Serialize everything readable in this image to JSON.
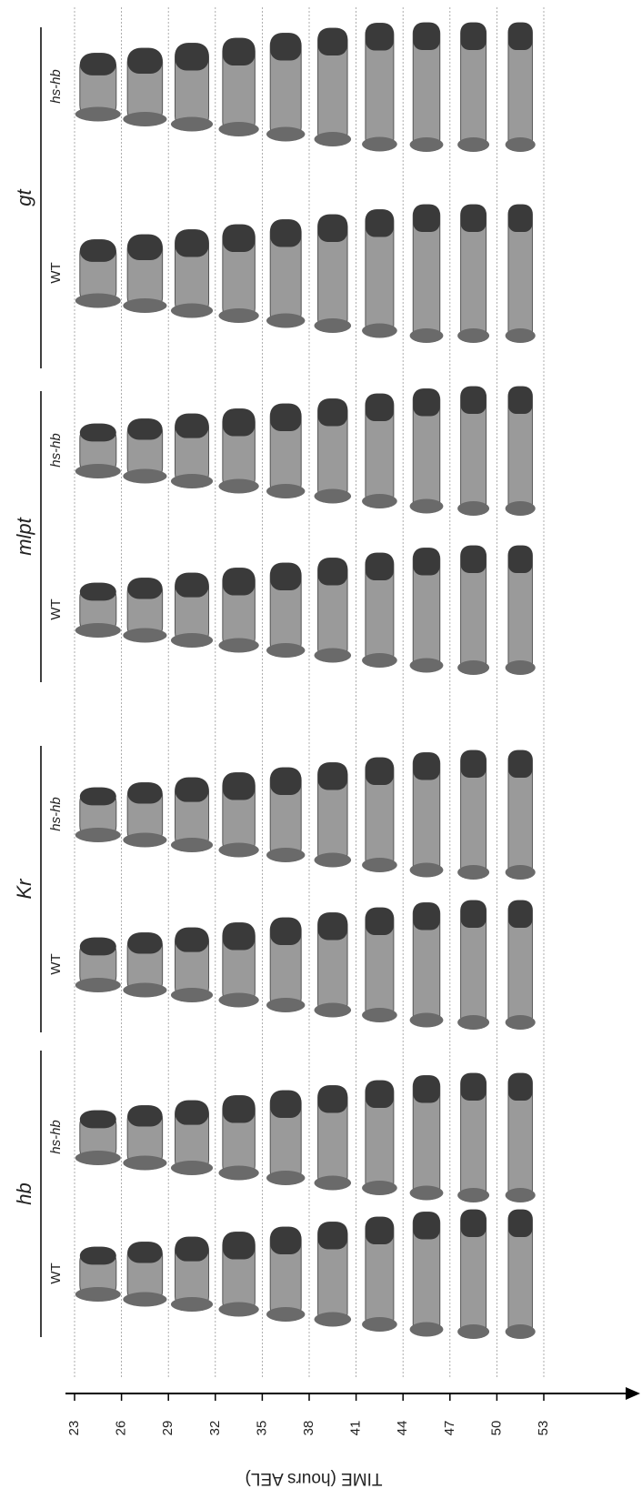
{
  "genes": [
    {
      "name": "hb",
      "conditions": [
        "WT",
        "hs-hb"
      ]
    },
    {
      "name": "Kr",
      "conditions": [
        "WT",
        "hs-hb"
      ]
    },
    {
      "name": "mlpt",
      "conditions": [
        "WT",
        "hs-hb"
      ]
    },
    {
      "name": "gt",
      "conditions": [
        "WT",
        "hs-hb"
      ]
    }
  ],
  "axis": {
    "label": "TIME (hours AEL)",
    "ticks": [
      23,
      26,
      29,
      32,
      35,
      38,
      41,
      44,
      47,
      50,
      53
    ]
  }
}
